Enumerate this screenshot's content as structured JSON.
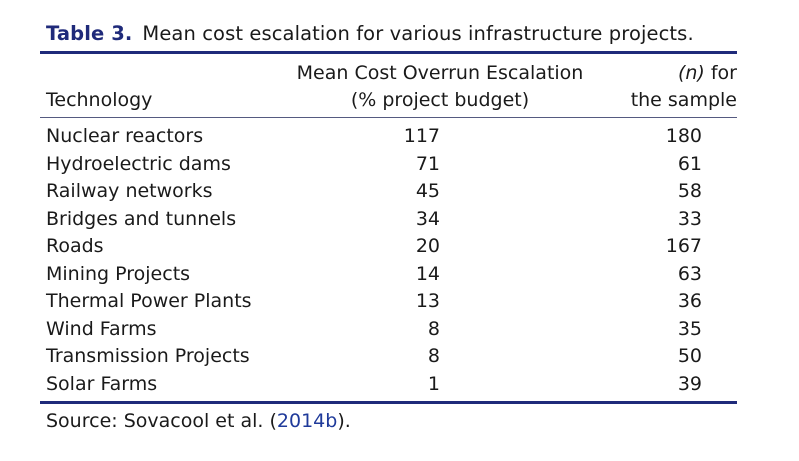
{
  "caption": {
    "label": "Table 3.",
    "text": "Mean cost escalation for various infrastructure projects."
  },
  "headers": {
    "technology": "Technology",
    "cost_line1": "Mean Cost Overrun Escalation",
    "cost_line2": "(% project budget)",
    "n_var": "(n)",
    "n_line1_rest": " for",
    "n_line2": "the sample"
  },
  "rows": [
    {
      "technology": "Nuclear reactors",
      "escalation": "117",
      "n": "180"
    },
    {
      "technology": "Hydroelectric dams",
      "escalation": "71",
      "n": "61"
    },
    {
      "technology": "Railway networks",
      "escalation": "45",
      "n": "58"
    },
    {
      "technology": "Bridges and tunnels",
      "escalation": "34",
      "n": "33"
    },
    {
      "technology": "Roads",
      "escalation": "20",
      "n": "167"
    },
    {
      "technology": "Mining Projects",
      "escalation": "14",
      "n": "63"
    },
    {
      "technology": "Thermal Power Plants",
      "escalation": "13",
      "n": "36"
    },
    {
      "technology": "Wind Farms",
      "escalation": "8",
      "n": "35"
    },
    {
      "technology": "Transmission Projects",
      "escalation": "8",
      "n": "50"
    },
    {
      "technology": "Solar Farms",
      "escalation": "1",
      "n": "39"
    }
  ],
  "source": {
    "prefix": "Source: Sovacool et al. ",
    "open": "(",
    "ref": "2014b",
    "close": ")."
  },
  "colors": {
    "accent": "#1f2a7a",
    "link": "#1f3a9a"
  }
}
